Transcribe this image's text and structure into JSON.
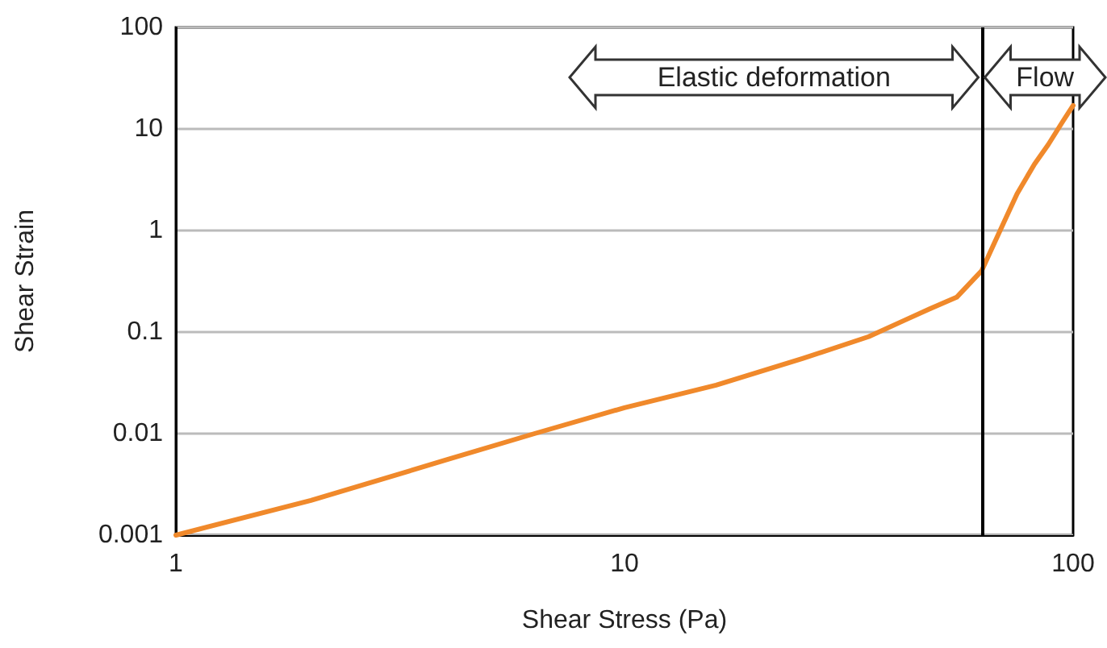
{
  "chart_data": {
    "type": "line",
    "xlabel": "Shear Stress (Pa)",
    "ylabel": "Shear Strain",
    "log": "xy",
    "grid": "y",
    "line_style": "solid",
    "marker": "none",
    "xlim": [
      1,
      100
    ],
    "xticks": [
      1,
      10,
      100
    ],
    "ylim": [
      0.001,
      100
    ],
    "yticks": [
      0.001,
      0.01,
      0.1,
      1,
      10,
      100
    ],
    "series": [
      {
        "color": "#f0892b",
        "x": [
          1,
          2,
          4,
          6.3,
          10,
          16,
          25,
          35,
          42,
          48,
          55,
          62.5,
          68,
          75,
          82,
          88,
          95,
          100
        ],
        "values": [
          0.001,
          0.0022,
          0.0055,
          0.01,
          0.018,
          0.03,
          0.055,
          0.09,
          0.13,
          0.17,
          0.22,
          0.4,
          0.9,
          2.3,
          4.5,
          7,
          12,
          17
        ]
      }
    ],
    "ref_lines": [
      {
        "axis": "x",
        "value": 62.5,
        "color": "#000000"
      }
    ],
    "annotations": [
      "Elastic deformation",
      "Flow"
    ]
  }
}
